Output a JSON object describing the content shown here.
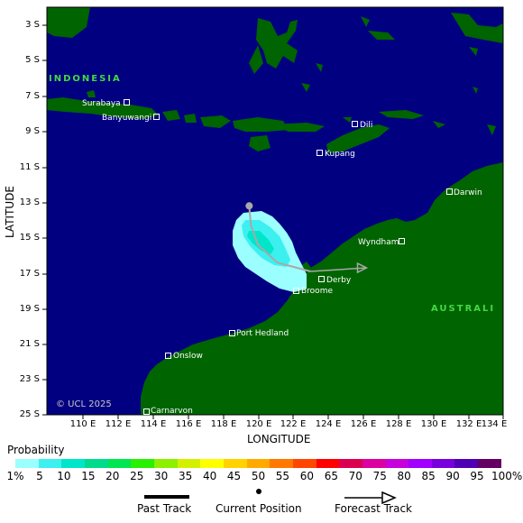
{
  "map": {
    "y_axis": {
      "title": "LATITUDE",
      "ticks": [
        "3 S",
        "5 S",
        "7 S",
        "9 S",
        "11 S",
        "13 S",
        "15 S",
        "17 S",
        "19 S",
        "21 S",
        "23 S",
        "25 S"
      ]
    },
    "x_axis": {
      "title": "LONGITUDE",
      "ticks": [
        "110 E",
        "112 E",
        "114 E",
        "116 E",
        "118 E",
        "120 E",
        "122 E",
        "124 E",
        "126 E",
        "128 E",
        "130 E",
        "132 E",
        "134 E"
      ]
    },
    "regions": [
      "INDONESIA",
      "AUSTRALI"
    ],
    "places": [
      "Surabaya",
      "Banyuwangi",
      "Dili",
      "Kupang",
      "Darwin",
      "Wyndham",
      "Derby",
      "Broome",
      "Port Hedland",
      "Onslow",
      "Carnarvon"
    ],
    "copyright": "© UCL 2025",
    "colors": {
      "ocean": "#000080",
      "land": "#006400",
      "track": "#a8a8a8"
    },
    "current_position": {
      "lat": -13.2,
      "lon": 119.5
    },
    "past_track": [
      {
        "lat": -13.2,
        "lon": 119.5
      },
      {
        "lat": -14.3,
        "lon": 119.6
      },
      {
        "lat": -15.4,
        "lon": 120.0
      },
      {
        "lat": -16.4,
        "lon": 121.1
      },
      {
        "lat": -16.9,
        "lon": 123.0
      }
    ],
    "forecast_track": [
      {
        "lat": -16.9,
        "lon": 123.0
      },
      {
        "lat": -16.7,
        "lon": 126.2
      }
    ]
  },
  "legend": {
    "probability_title": "Probability",
    "probability_ticks": [
      "1%",
      "5",
      "10",
      "15",
      "20",
      "25",
      "30",
      "35",
      "40",
      "45",
      "50",
      "55",
      "60",
      "65",
      "70",
      "75",
      "80",
      "85",
      "90",
      "95",
      "100%"
    ],
    "probability_colors": [
      "#9bffff",
      "#3cf0f0",
      "#00e6c8",
      "#00dc8c",
      "#00e650",
      "#28f000",
      "#8cf000",
      "#d2f000",
      "#ffff00",
      "#ffd200",
      "#ffaa00",
      "#ff7800",
      "#ff4600",
      "#ff0000",
      "#dc0050",
      "#dc00a0",
      "#c800dc",
      "#a000ff",
      "#7800dc",
      "#5000b4",
      "#640064"
    ],
    "past_track_label": "Past Track",
    "current_position_label": "Current Position",
    "forecast_track_label": "Forecast Track"
  }
}
